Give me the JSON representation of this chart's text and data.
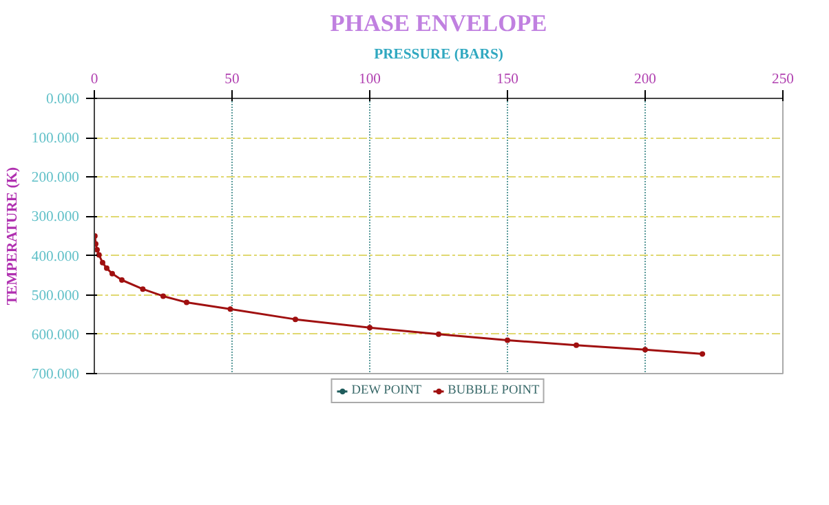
{
  "chart_data": {
    "type": "line",
    "title": "PHASE ENVELOPE",
    "xlabel": "PRESSURE (BARS)",
    "ylabel": "TEMPERATURE (K)",
    "x": [
      0.2,
      0.5,
      1,
      1.7,
      3,
      4.5,
      6.5,
      10,
      17.6,
      25,
      33.5,
      49.4,
      73,
      100,
      125,
      150,
      175,
      200,
      220.8
    ],
    "xlim": [
      0,
      250
    ],
    "xticks": [
      0,
      50,
      100,
      150,
      200,
      250
    ],
    "ylim": [
      700,
      0
    ],
    "yticks": [
      {
        "value": 0,
        "label": "0.000"
      },
      {
        "value": 100,
        "label": "100.000"
      },
      {
        "value": 200,
        "label": "200.000"
      },
      {
        "value": 300,
        "label": "300.000"
      },
      {
        "value": 400,
        "label": "400.000"
      },
      {
        "value": 500,
        "label": "500.000"
      },
      {
        "value": 600,
        "label": "600.000"
      },
      {
        "value": 700,
        "label": "700.000"
      }
    ],
    "series": [
      {
        "name": "DEW POINT",
        "color": "#1f5c5c",
        "values": [
          null,
          null,
          null,
          null,
          null,
          null,
          null,
          null,
          null,
          null,
          null,
          null,
          null,
          null,
          null,
          null,
          null,
          null,
          null
        ]
      },
      {
        "name": "BUBBLE POINT",
        "color": "#a01010",
        "values": [
          350,
          370,
          385,
          398,
          418,
          432,
          446,
          462,
          485,
          503,
          519,
          536,
          562,
          583,
          600,
          615,
          628,
          639,
          650
        ]
      }
    ],
    "grid": true,
    "legend": "bottom",
    "marker": "circle",
    "line_style": "solid"
  }
}
